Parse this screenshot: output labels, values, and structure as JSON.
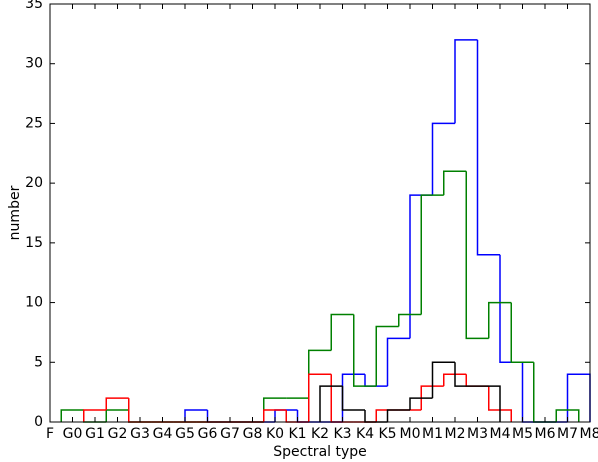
{
  "chart_data": {
    "type": "histogram",
    "x_label": "Spectral type",
    "y_label": "number",
    "xlim": [
      0,
      24
    ],
    "ylim": [
      0,
      35
    ],
    "xticks": [
      {
        "value": 0,
        "label": "F"
      },
      {
        "value": 1,
        "label": "G0"
      },
      {
        "value": 2,
        "label": "G1"
      },
      {
        "value": 3,
        "label": "G2"
      },
      {
        "value": 4,
        "label": "G3"
      },
      {
        "value": 5,
        "label": "G4"
      },
      {
        "value": 6,
        "label": "G5"
      },
      {
        "value": 7,
        "label": "G6"
      },
      {
        "value": 8,
        "label": "G7"
      },
      {
        "value": 9,
        "label": "G8"
      },
      {
        "value": 10,
        "label": "K0"
      },
      {
        "value": 11,
        "label": "K1"
      },
      {
        "value": 12,
        "label": "K2"
      },
      {
        "value": 13,
        "label": "K3"
      },
      {
        "value": 14,
        "label": "K4"
      },
      {
        "value": 15,
        "label": "K5"
      },
      {
        "value": 16,
        "label": "M0"
      },
      {
        "value": 17,
        "label": "M1"
      },
      {
        "value": 18,
        "label": "M2"
      },
      {
        "value": 19,
        "label": "M3"
      },
      {
        "value": 20,
        "label": "M4"
      },
      {
        "value": 21,
        "label": "M5"
      },
      {
        "value": 22,
        "label": "M6"
      },
      {
        "value": 23,
        "label": "M7"
      },
      {
        "value": 24,
        "label": "M8"
      }
    ],
    "yticks": [
      0,
      5,
      10,
      15,
      20,
      25,
      30,
      35
    ],
    "series": [
      {
        "color": "#0000ff",
        "bins": [
          6,
          7,
          8,
          9,
          10,
          11,
          12,
          13,
          14,
          15,
          16,
          17,
          18,
          19,
          20,
          21,
          22,
          23,
          24
        ],
        "values": [
          1,
          0,
          0,
          0,
          1,
          0,
          0,
          4,
          3,
          7,
          19,
          25,
          32,
          14,
          5,
          0,
          0,
          4
        ]
      },
      {
        "color": "#008000",
        "bins": [
          0.5,
          1.5,
          2.5,
          3.5,
          4.5,
          5.5,
          6.5,
          7.5,
          8.5,
          9.5,
          10.5,
          11.5,
          12.5,
          13.5,
          14.5,
          15.5,
          16.5,
          17.5,
          18.5,
          19.5,
          20.5,
          21.5,
          22.5,
          23.5
        ],
        "values": [
          1,
          0,
          1,
          0,
          0,
          0,
          0,
          0,
          0,
          2,
          2,
          6,
          9,
          3,
          8,
          9,
          19,
          21,
          7,
          10,
          5,
          0,
          1
        ]
      },
      {
        "color": "#ff0000",
        "bins": [
          1.5,
          2.5,
          3.5,
          4.5,
          5.5,
          6.5,
          7.5,
          8.5,
          9.5,
          10.5,
          11.5,
          12.5,
          13.5,
          14.5,
          15.5,
          16.5,
          17.5,
          18.5,
          19.5,
          20.5
        ],
        "values": [
          1,
          2,
          0,
          0,
          0,
          0,
          0,
          0,
          1,
          0,
          4,
          0,
          0,
          1,
          1,
          3,
          4,
          3,
          1
        ]
      },
      {
        "color": "#000000",
        "bins": [
          12,
          13,
          14,
          15,
          16,
          17,
          18,
          19,
          20
        ],
        "values": [
          3,
          1,
          0,
          1,
          2,
          5,
          3,
          3
        ]
      }
    ]
  }
}
